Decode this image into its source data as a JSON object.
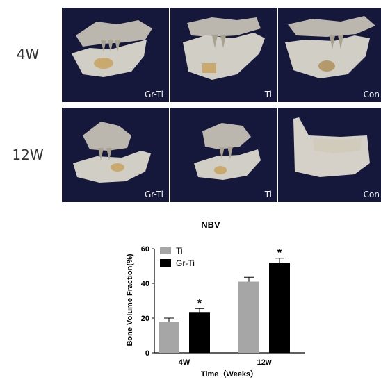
{
  "figure": {
    "rows": [
      {
        "label": "4W",
        "panels": [
          {
            "label": "Gr-Ti",
            "icon": "ct-jaw-scan-image"
          },
          {
            "label": "Ti",
            "icon": "ct-jaw-scan-image"
          },
          {
            "label": "Con",
            "icon": "ct-jaw-scan-image"
          }
        ]
      },
      {
        "label": "12W",
        "panels": [
          {
            "label": "Gr-Ti",
            "icon": "ct-jaw-scan-image"
          },
          {
            "label": "Ti",
            "icon": "ct-jaw-scan-image"
          },
          {
            "label": "Con",
            "icon": "ct-jaw-scan-image"
          }
        ]
      }
    ],
    "panel_background": "#15183a",
    "bone_color": "#e6e2d6"
  },
  "chart_data": {
    "type": "bar",
    "title": "NBV",
    "xlabel": "Time（Weeks）",
    "ylabel": "Bone Volume Fraction(%)",
    "ylim": [
      0,
      60
    ],
    "yticks": [
      "0",
      "20",
      "40",
      "60"
    ],
    "categories": [
      "4W",
      "12w"
    ],
    "series": [
      {
        "name": "Ti",
        "color": "#a6a6a6",
        "values": [
          18,
          41
        ],
        "errors": [
          2,
          2.5
        ],
        "markers": [
          "",
          ""
        ]
      },
      {
        "name": "Gr-Ti",
        "color": "#000000",
        "values": [
          23.5,
          52
        ],
        "errors": [
          2,
          2.5
        ],
        "markers": [
          "*",
          "*"
        ]
      }
    ],
    "legend": "top-left",
    "grid": false
  }
}
